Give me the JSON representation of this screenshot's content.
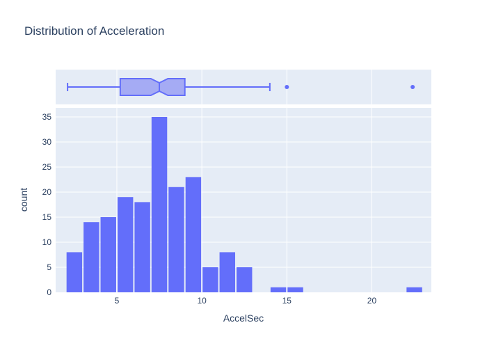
{
  "chart_data": {
    "type": "bar",
    "title": "Distribution of Acceleration",
    "xlabel": "AccelSec",
    "ylabel": "count",
    "xlim": [
      1.4,
      23.5
    ],
    "ylim": [
      0,
      36.8
    ],
    "bin_width": 1,
    "bins": [
      {
        "x0": 2,
        "x1": 3,
        "count": 8
      },
      {
        "x0": 3,
        "x1": 4,
        "count": 14
      },
      {
        "x0": 4,
        "x1": 5,
        "count": 15
      },
      {
        "x0": 5,
        "x1": 6,
        "count": 19
      },
      {
        "x0": 6,
        "x1": 7,
        "count": 18
      },
      {
        "x0": 7,
        "x1": 8,
        "count": 35
      },
      {
        "x0": 8,
        "x1": 9,
        "count": 21
      },
      {
        "x0": 9,
        "x1": 10,
        "count": 23
      },
      {
        "x0": 10,
        "x1": 11,
        "count": 5
      },
      {
        "x0": 11,
        "x1": 12,
        "count": 8
      },
      {
        "x0": 12,
        "x1": 13,
        "count": 5
      },
      {
        "x0": 14,
        "x1": 15,
        "count": 1
      },
      {
        "x0": 15,
        "x1": 16,
        "count": 1
      },
      {
        "x0": 22,
        "x1": 23,
        "count": 1
      }
    ],
    "xticks": [
      5,
      10,
      15,
      20
    ],
    "yticks": [
      0,
      5,
      10,
      15,
      20,
      25,
      30,
      35
    ],
    "box": {
      "lower_fence": 2.1,
      "q1": 5.2,
      "median": 7.5,
      "q3": 9.0,
      "upper_fence": 14.0,
      "notch_low": 7.0,
      "notch_high": 8.0,
      "outliers": [
        15.0,
        22.4
      ]
    },
    "colors": {
      "bar": "#636efa",
      "plot_bg": "#e5ecf6",
      "grid": "#ffffff",
      "box_fill": "#a5abf4",
      "box_line": "#636efa",
      "text": "#2a3f5f"
    }
  }
}
